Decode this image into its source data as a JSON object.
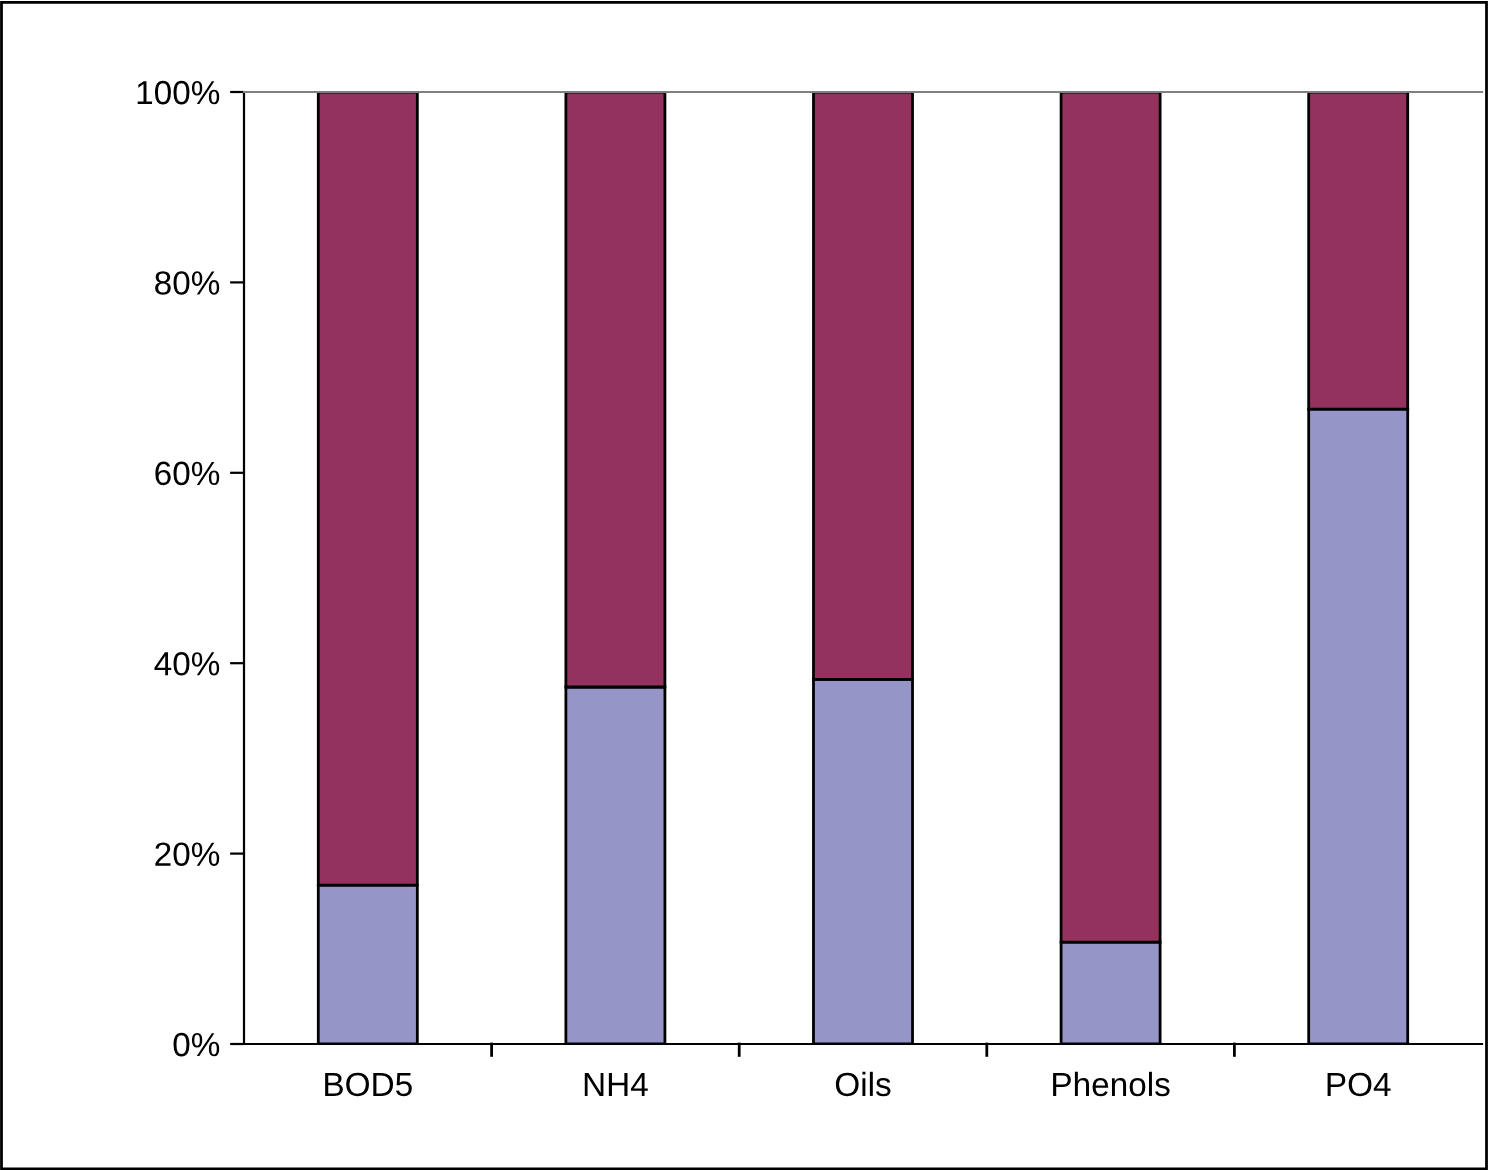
{
  "chart_data": {
    "type": "bar",
    "stacked": true,
    "categories": [
      "BOD5",
      "NH4",
      "Oils",
      "Phenols",
      "PO4"
    ],
    "series": [
      {
        "color": "#9595c8",
        "values": [
          16.7,
          37.5,
          38.3,
          10.7,
          66.7
        ]
      },
      {
        "color": "#93325e",
        "values": [
          83.3,
          62.5,
          61.7,
          89.3,
          33.3
        ]
      }
    ],
    "ylim": [
      0,
      100
    ],
    "yticks": [
      {
        "value": 0,
        "label": "0%"
      },
      {
        "value": 20,
        "label": "20%"
      },
      {
        "value": 40,
        "label": "40%"
      },
      {
        "value": 60,
        "label": "60%"
      },
      {
        "value": 80,
        "label": "80%"
      },
      {
        "value": 100,
        "label": "100%"
      }
    ],
    "grid": false
  }
}
